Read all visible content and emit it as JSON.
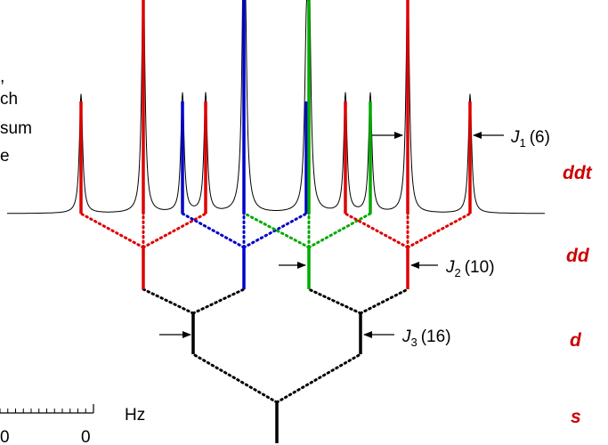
{
  "side_text_fragments": [
    ",",
    "ch",
    "sum",
    "e"
  ],
  "levels": [
    "ddt",
    "dd",
    "d",
    "s"
  ],
  "couplings": [
    {
      "symbol": "J",
      "sub": "1",
      "value": "(6)"
    },
    {
      "symbol": "J",
      "sub": "2",
      "value": "(10)"
    },
    {
      "symbol": "J",
      "sub": "3",
      "value": "(16)"
    }
  ],
  "scale": {
    "unit": "Hz",
    "tick_labels": [
      "0",
      "0"
    ]
  },
  "colors": {
    "red": "#dd0000",
    "blue": "#0000cc",
    "green": "#00aa00",
    "black": "#000000"
  }
}
